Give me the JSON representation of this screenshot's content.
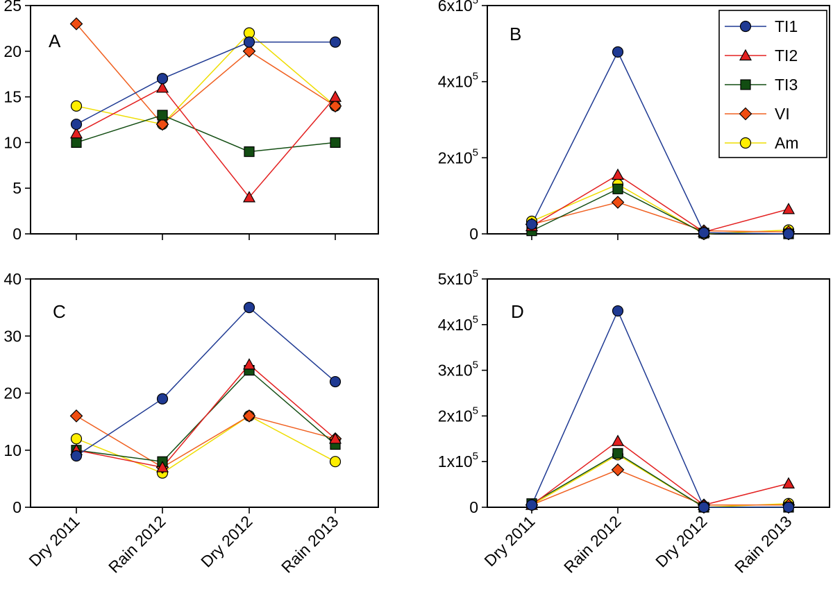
{
  "chart_data": {
    "type": "line",
    "categories": [
      "Dry 2011",
      "Rain 2012",
      "Dry 2012",
      "Rain 2013"
    ],
    "legend": {
      "position": "top-right of panel B",
      "entries": [
        {
          "name": "TI1",
          "color": "#1f3a93",
          "line_color": "#1f3a93",
          "marker": "circle"
        },
        {
          "name": "TI2",
          "color": "#e32020",
          "line_color": "#e32020",
          "marker": "triangle"
        },
        {
          "name": "TI3",
          "color": "#124d12",
          "line_color": "#124d12",
          "marker": "square"
        },
        {
          "name": "VI",
          "color": "#f04d12",
          "line_color": "#f06020",
          "marker": "diamond"
        },
        {
          "name": "Am",
          "color": "#ffee00",
          "line_color": "#eedd00",
          "marker": "circle"
        }
      ]
    },
    "panels": [
      {
        "label": "A",
        "ylim": [
          0,
          25
        ],
        "ytick_values": [
          0,
          5,
          10,
          15,
          20,
          25
        ],
        "ytick_labels": [
          "0",
          "5",
          "10",
          "15",
          "20",
          "25"
        ],
        "series": [
          {
            "name": "TI1",
            "values": [
              12,
              17,
              21,
              21
            ]
          },
          {
            "name": "TI2",
            "values": [
              11,
              16,
              4,
              15
            ]
          },
          {
            "name": "TI3",
            "values": [
              10,
              13,
              9,
              10
            ]
          },
          {
            "name": "VI",
            "values": [
              23,
              12,
              20,
              14
            ]
          },
          {
            "name": "Am",
            "values": [
              14,
              12,
              22,
              14
            ]
          }
        ]
      },
      {
        "label": "B",
        "ylim": [
          0,
          600000
        ],
        "ytick_values": [
          0,
          200000,
          400000,
          600000
        ],
        "ytick_labels": [
          {
            "base": "0",
            "exp": ""
          },
          {
            "base": "2x10",
            "exp": "5"
          },
          {
            "base": "4x10",
            "exp": "5"
          },
          {
            "base": "6x10",
            "exp": "5"
          }
        ],
        "series": [
          {
            "name": "TI1",
            "values": [
              25000,
              478000,
              3000,
              0
            ]
          },
          {
            "name": "TI2",
            "values": [
              20000,
              155000,
              5000,
              65000
            ]
          },
          {
            "name": "TI3",
            "values": [
              8000,
              118000,
              2000,
              0
            ]
          },
          {
            "name": "VI",
            "values": [
              25000,
              83000,
              8000,
              5000
            ]
          },
          {
            "name": "Am",
            "values": [
              33000,
              130000,
              0,
              10000
            ]
          }
        ]
      },
      {
        "label": "C",
        "ylim": [
          0,
          40
        ],
        "ytick_values": [
          0,
          10,
          20,
          30,
          40
        ],
        "ytick_labels": [
          "0",
          "10",
          "20",
          "30",
          "40"
        ],
        "series": [
          {
            "name": "TI1",
            "values": [
              9,
              19,
              35,
              22
            ]
          },
          {
            "name": "TI2",
            "values": [
              10,
              7,
              25,
              12
            ]
          },
          {
            "name": "TI3",
            "values": [
              10,
              8,
              24,
              11
            ]
          },
          {
            "name": "VI",
            "values": [
              16,
              7,
              16,
              12
            ]
          },
          {
            "name": "Am",
            "values": [
              12,
              6,
              16,
              8
            ]
          }
        ]
      },
      {
        "label": "D",
        "ylim": [
          0,
          500000
        ],
        "ytick_values": [
          0,
          100000,
          200000,
          300000,
          400000,
          500000
        ],
        "ytick_labels": [
          {
            "base": "0",
            "exp": ""
          },
          {
            "base": "1x10",
            "exp": "5"
          },
          {
            "base": "2x10",
            "exp": "5"
          },
          {
            "base": "3x10",
            "exp": "5"
          },
          {
            "base": "4x10",
            "exp": "5"
          },
          {
            "base": "5x10",
            "exp": "5"
          }
        ],
        "series": [
          {
            "name": "TI1",
            "values": [
              5000,
              430000,
              0,
              0
            ]
          },
          {
            "name": "TI2",
            "values": [
              5000,
              145000,
              5000,
              52000
            ]
          },
          {
            "name": "TI3",
            "values": [
              8000,
              118000,
              0,
              0
            ]
          },
          {
            "name": "VI",
            "values": [
              5000,
              82000,
              5000,
              5000
            ]
          },
          {
            "name": "Am",
            "values": [
              5000,
              115000,
              0,
              8000
            ]
          }
        ]
      }
    ]
  }
}
